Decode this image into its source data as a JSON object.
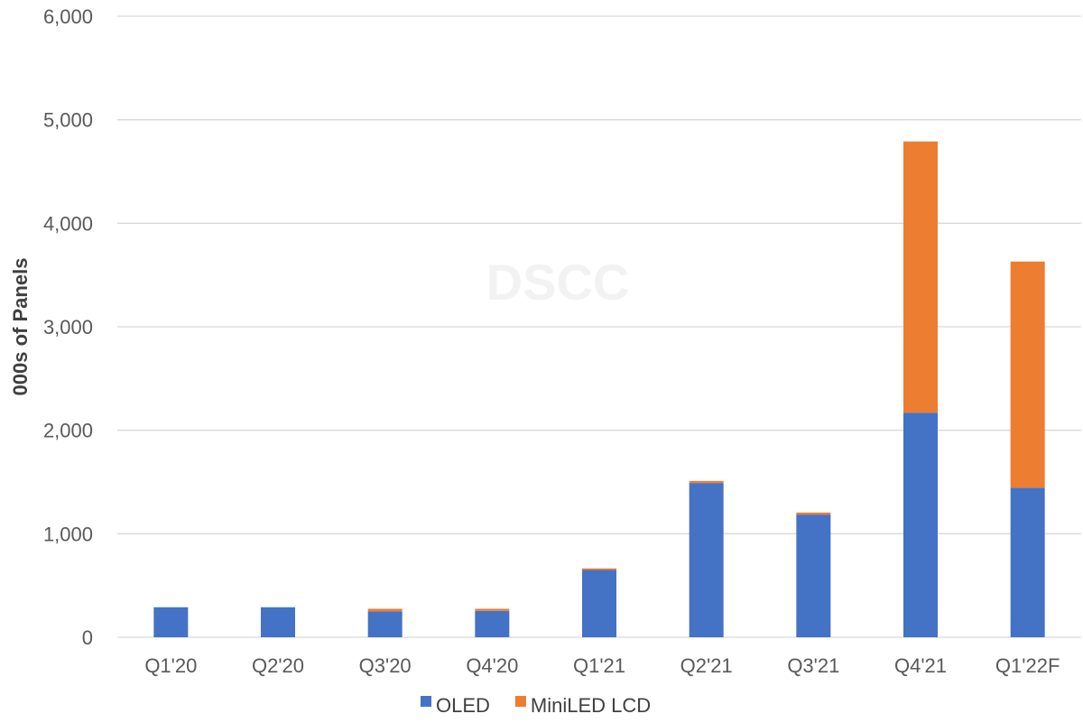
{
  "chart_data": {
    "type": "bar",
    "stacked": true,
    "title": "",
    "xlabel": "",
    "ylabel": "000s of Panels",
    "ylim": [
      0,
      6000
    ],
    "yticks": [
      "0",
      "1,000",
      "2,000",
      "3,000",
      "4,000",
      "5,000",
      "6,000"
    ],
    "ytick_values": [
      0,
      1000,
      2000,
      3000,
      4000,
      5000,
      6000
    ],
    "grid": true,
    "legend_position": "bottom",
    "watermark": "DSCC",
    "categories": [
      "Q1'20",
      "Q2'20",
      "Q3'20",
      "Q4'20",
      "Q1'21",
      "Q2'21",
      "Q3'21",
      "Q4'21",
      "Q1'22F"
    ],
    "series": [
      {
        "name": "OLED",
        "color": "#4472C4",
        "values": [
          290,
          290,
          250,
          255,
          650,
          1490,
          1185,
          2170,
          1445
        ]
      },
      {
        "name": "MiniLED LCD",
        "color": "#ED7D31",
        "values": [
          0,
          0,
          25,
          20,
          15,
          20,
          20,
          2620,
          2185
        ]
      }
    ]
  }
}
